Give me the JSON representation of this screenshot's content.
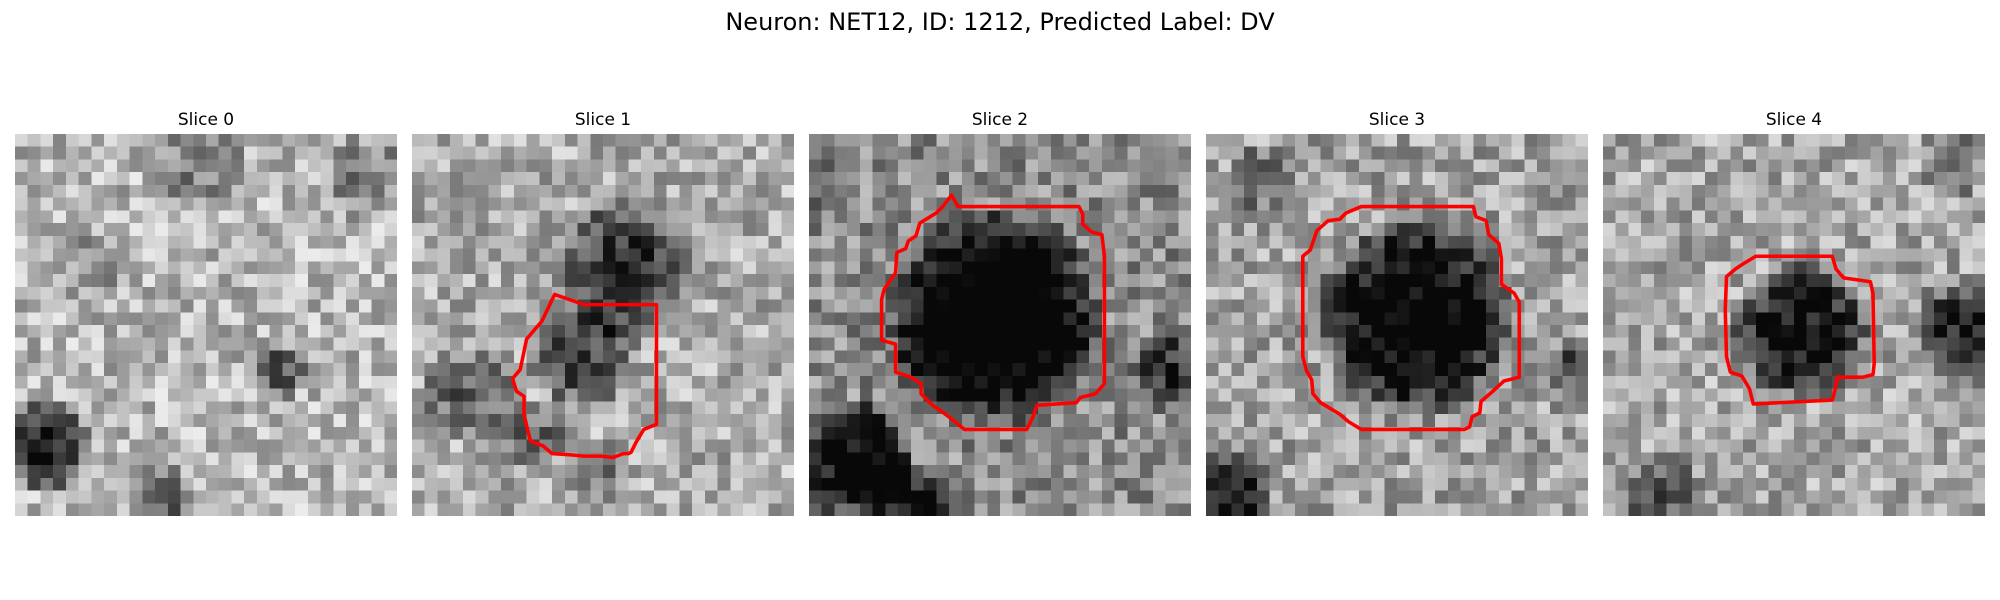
{
  "figure": {
    "title": "Neuron: NET12, ID: 1212, Predicted Label: DV"
  },
  "colors": {
    "contour": "#ff0000"
  },
  "slices": [
    {
      "title": "Slice 0",
      "has_contour": false
    },
    {
      "title": "Slice 1",
      "has_contour": true
    },
    {
      "title": "Slice 2",
      "has_contour": true
    },
    {
      "title": "Slice 3",
      "has_contour": true
    },
    {
      "title": "Slice 4",
      "has_contour": true
    }
  ]
}
